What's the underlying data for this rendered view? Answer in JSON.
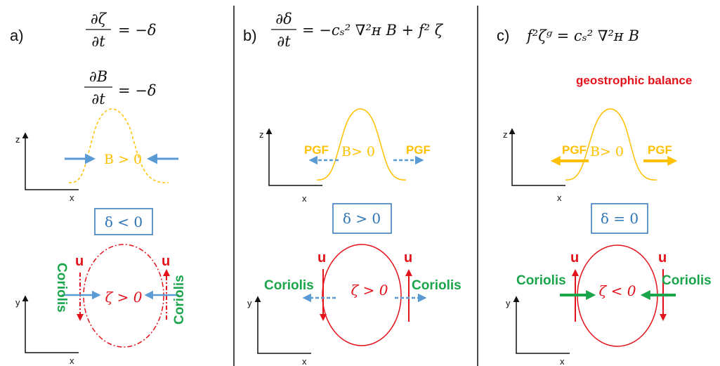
{
  "colors": {
    "black": "#111111",
    "blue": "#5b9bd5",
    "yellow": "#ffc000",
    "red": "#e4121b",
    "green": "#1aa54b"
  },
  "panels": [
    {
      "id": "a",
      "label": "a)",
      "equations": [
        "∂ζ/∂t = −δ",
        "∂B/∂t = −δ"
      ],
      "eq1": {
        "lhs_num": "∂ζ",
        "lhs_den": "∂t",
        "rhs": "= −δ"
      },
      "eq2": {
        "lhs_num": "∂B",
        "lhs_den": "∂t",
        "rhs": "= −δ"
      },
      "bump_label": "B > 0",
      "z_label": "z",
      "x_label": "x",
      "y_label": "y",
      "box_text": "δ < 0",
      "circle_label": "ζ > 0",
      "u_label": "u",
      "coriolis_left": "Coriolis",
      "coriolis_right": "Coriolis"
    },
    {
      "id": "b",
      "label": "b)",
      "equation": "∂δ/∂t = −cₛ² ∇²_H B + f² ζ",
      "eq": {
        "lhs_num": "∂δ",
        "lhs_den": "∂t",
        "rhs": "= −cₛ² ∇²ʜ B + f² ζ"
      },
      "bump_label": "B> 0",
      "pgf_left": "PGF",
      "pgf_right": "PGF",
      "z_label": "z",
      "x_label": "x",
      "y_label": "y",
      "box_text": "δ > 0",
      "circle_label": "ζ > 0",
      "u_left": "u",
      "u_right": "u",
      "coriolis_left": "Coriolis",
      "coriolis_right": "Coriolis"
    },
    {
      "id": "c",
      "label": "c)",
      "equation": "f²ζg = cₛ² ∇²_H B",
      "eq": {
        "text": "f²ζᵍ = cₛ² ∇²ʜ B"
      },
      "balance_text": "geostrophic balance",
      "bump_label": "B> 0",
      "pgf_left": "PGF",
      "pgf_right": "PGF",
      "z_label": "z",
      "x_label": "x",
      "y_label": "y",
      "box_text": "δ = 0",
      "circle_label": "ζ < 0",
      "u_left": "u",
      "u_right": "u",
      "coriolis_left": "Coriolis",
      "coriolis_right": "Coriolis"
    }
  ]
}
